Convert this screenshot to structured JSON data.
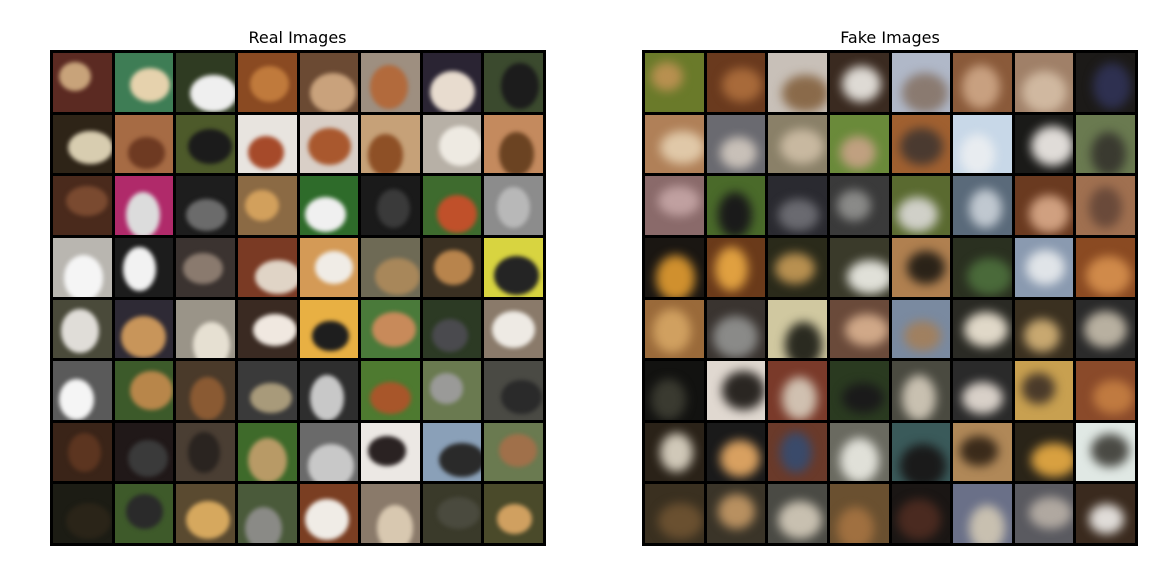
{
  "panels": [
    {
      "title": "Real Images",
      "tiles": [
        [
          "#5b2a22",
          "#c8a37a"
        ],
        [
          "#3e7d55",
          "#e6d2ad"
        ],
        [
          "#2f3b22",
          "#efefef"
        ],
        [
          "#8a4a22",
          "#c07a3c"
        ],
        [
          "#6b4a33",
          "#c9a27c"
        ],
        [
          "#9e8f80",
          "#b26a3c"
        ],
        [
          "#2a2433",
          "#e8dccf"
        ],
        [
          "#3b4a2e",
          "#1c1c1c"
        ],
        [
          "#2e2417",
          "#d8cdb0"
        ],
        [
          "#a66b44",
          "#6e3a22"
        ],
        [
          "#4d5a2a",
          "#1b1b1b"
        ],
        [
          "#e8e4df",
          "#a64a2a"
        ],
        [
          "#d9cfc7",
          "#a9582e"
        ],
        [
          "#c6a178",
          "#8e5026"
        ],
        [
          "#b7b0a6",
          "#eeeae2"
        ],
        [
          "#c48a5e",
          "#6b4322"
        ],
        [
          "#4a2a1c",
          "#7a4a30"
        ],
        [
          "#b02a6a",
          "#dcdcdc"
        ],
        [
          "#1d1d1d",
          "#6b6b6b"
        ],
        [
          "#8b6a44",
          "#d2a05c"
        ],
        [
          "#2e6b2a",
          "#f0f0f0"
        ],
        [
          "#1a1a1a",
          "#3a3a3a"
        ],
        [
          "#3e6b2e",
          "#c0502a"
        ],
        [
          "#8c8c8c",
          "#b8b8b8"
        ],
        [
          "#b9b6b0",
          "#f5f5f5"
        ],
        [
          "#1c1c1c",
          "#f2f2f2"
        ],
        [
          "#3b3330",
          "#8a7a6e"
        ],
        [
          "#7a3a24",
          "#e0d4c6"
        ],
        [
          "#d49a56",
          "#f0ece6"
        ],
        [
          "#6e6a55",
          "#a8875a"
        ],
        [
          "#3a3022",
          "#b8844c"
        ],
        [
          "#d8d440",
          "#242424"
        ],
        [
          "#4a4a3a",
          "#e0ddd8"
        ],
        [
          "#2e2a35",
          "#c8955a"
        ],
        [
          "#9a9488",
          "#e6e0d2"
        ],
        [
          "#3a2a22",
          "#f0e8e0"
        ],
        [
          "#e8b043",
          "#1e1e1e"
        ],
        [
          "#4a7a3a",
          "#c88a5a"
        ],
        [
          "#2c3a24",
          "#4a4a4e"
        ],
        [
          "#8a7a6a",
          "#eeeae4"
        ],
        [
          "#5a5a5a",
          "#f5f5f5"
        ],
        [
          "#3c5a2a",
          "#b8864a"
        ],
        [
          "#4a3a2a",
          "#8a5a33"
        ],
        [
          "#3a3a3a",
          "#a89a7a"
        ],
        [
          "#2e2e2e",
          "#c8c8c8"
        ],
        [
          "#4e7a30",
          "#a8562a"
        ],
        [
          "#6a7a50",
          "#9a9a98"
        ],
        [
          "#4a4a44",
          "#2a2a2a"
        ],
        [
          "#3a2418",
          "#5c3520"
        ],
        [
          "#201818",
          "#3a3a3a"
        ],
        [
          "#4a3e33",
          "#2a2420"
        ],
        [
          "#3e6a2a",
          "#b89a66"
        ],
        [
          "#6a6a6a",
          "#c8c8c8"
        ],
        [
          "#ece8e4",
          "#2a2222"
        ],
        [
          "#8aa0b8",
          "#2a2a2a"
        ],
        [
          "#6a7a50",
          "#a0704a"
        ],
        [
          "#1c1c14",
          "#2a2418"
        ],
        [
          "#3e5a2a",
          "#2a2a2a"
        ],
        [
          "#5a4a30",
          "#d6a85e"
        ],
        [
          "#4a5a3a",
          "#8a8a86"
        ],
        [
          "#7a3e22",
          "#f0ece6"
        ],
        [
          "#8a7a6a",
          "#d8c8b0"
        ],
        [
          "#3a3a2a",
          "#4a4a3e"
        ],
        [
          "#4a4a2a",
          "#d0a060"
        ]
      ]
    },
    {
      "title": "Fake Images",
      "tiles": [
        [
          "#6a7a2a",
          "#b89050"
        ],
        [
          "#6a3a1e",
          "#a86a3a"
        ],
        [
          "#c8c0b8",
          "#8a6a4a"
        ],
        [
          "#3a2a20",
          "#dedad4"
        ],
        [
          "#b0b8c8",
          "#8a7a70"
        ],
        [
          "#8a5a3a",
          "#c8a080"
        ],
        [
          "#a08068",
          "#d0b8a0"
        ],
        [
          "#1c1a18",
          "#2e3050"
        ],
        [
          "#b08058",
          "#e0c8a8"
        ],
        [
          "#6a6a70",
          "#c8c0b8"
        ],
        [
          "#8a8068",
          "#c8b8a0"
        ],
        [
          "#6a8a3a",
          "#c0a080"
        ],
        [
          "#a06030",
          "#4a3a30"
        ],
        [
          "#c8d8e8",
          "#e8ecf0"
        ],
        [
          "#1a1a18",
          "#e0dcd8"
        ],
        [
          "#6a7a50",
          "#3a3a30"
        ],
        [
          "#8a6a6a",
          "#c0a0a0"
        ],
        [
          "#4a6a2a",
          "#1a1a1a"
        ],
        [
          "#2a2a30",
          "#6a6a70"
        ],
        [
          "#3a3a3a",
          "#8a8a88"
        ],
        [
          "#5a6a30",
          "#d0d0c8"
        ],
        [
          "#5a6a7a",
          "#c0c8d0"
        ],
        [
          "#6a3a20",
          "#d0a080"
        ],
        [
          "#a07050",
          "#6a4a3a"
        ],
        [
          "#1a1612",
          "#d0902e"
        ],
        [
          "#6a3a1a",
          "#e0a040"
        ],
        [
          "#2a2a1a",
          "#b89050"
        ],
        [
          "#3a3a2a",
          "#e0e0d8"
        ],
        [
          "#b08050",
          "#2a2218"
        ],
        [
          "#2a3020",
          "#4a6a3a"
        ],
        [
          "#8a9ab0",
          "#e0e4e8"
        ],
        [
          "#8a4a22",
          "#d08a4a"
        ],
        [
          "#9a6a3a",
          "#d0a060"
        ],
        [
          "#3a3430",
          "#8a8a88"
        ],
        [
          "#d0c8a0",
          "#2a2a20"
        ],
        [
          "#6a4a3a",
          "#d0a888"
        ],
        [
          "#7a8aa0",
          "#a08060"
        ],
        [
          "#2a2a24",
          "#e0d8c8"
        ],
        [
          "#3a3020",
          "#c8a870"
        ],
        [
          "#2a2a2a",
          "#b8b0a0"
        ],
        [
          "#121210",
          "#3a3a30"
        ],
        [
          "#e0d8d0",
          "#2a2622"
        ],
        [
          "#7a3a2a",
          "#d0c0b0"
        ],
        [
          "#2a3a20",
          "#1a1a1a"
        ],
        [
          "#4a4a40",
          "#c8c0b0"
        ],
        [
          "#2a2a2a",
          "#d8d0c8"
        ],
        [
          "#c8a050",
          "#4a3a2a"
        ],
        [
          "#8a4a2a",
          "#c07a40"
        ],
        [
          "#2a2218",
          "#d0c8b8"
        ],
        [
          "#1a1a1a",
          "#d8a060"
        ],
        [
          "#6a3a2a",
          "#3a4a6a"
        ],
        [
          "#6a6a60",
          "#e0e0d8"
        ],
        [
          "#3a5a5a",
          "#1a1a1a"
        ],
        [
          "#b08858",
          "#3a2a1a"
        ],
        [
          "#2a2418",
          "#d8a040"
        ],
        [
          "#e0e8e4",
          "#4a4a44"
        ],
        [
          "#3a3020",
          "#6a5030"
        ],
        [
          "#3a3428",
          "#b89060"
        ],
        [
          "#4a4a44",
          "#c8c0b0"
        ],
        [
          "#6a5030",
          "#a07040"
        ],
        [
          "#1a1614",
          "#4a2a20"
        ],
        [
          "#6a7088",
          "#c8c0b0"
        ],
        [
          "#5a5a60",
          "#b0a8a0"
        ],
        [
          "#3a2a1e",
          "#e0dcd8"
        ]
      ]
    }
  ]
}
